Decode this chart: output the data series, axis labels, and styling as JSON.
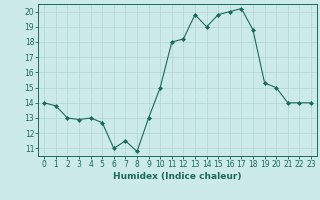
{
  "x": [
    0,
    1,
    2,
    3,
    4,
    5,
    6,
    7,
    8,
    9,
    10,
    11,
    12,
    13,
    14,
    15,
    16,
    17,
    18,
    19,
    20,
    21,
    22,
    23
  ],
  "y": [
    14,
    13.8,
    13,
    12.9,
    13,
    12.7,
    11,
    11.5,
    10.8,
    13,
    15,
    18,
    18.2,
    19.8,
    19,
    19.8,
    20,
    20.2,
    18.8,
    15.3,
    15,
    14,
    14,
    14
  ],
  "line_color": "#1a6b5a",
  "marker_color": "#1a6b5a",
  "bg_color": "#cceaea",
  "grid_color": "#b0d4d4",
  "xlabel": "Humidex (Indice chaleur)",
  "xlim": [
    -0.5,
    23.5
  ],
  "ylim": [
    10.5,
    20.5
  ],
  "yticks": [
    11,
    12,
    13,
    14,
    15,
    16,
    17,
    18,
    19,
    20
  ],
  "xticks": [
    0,
    1,
    2,
    3,
    4,
    5,
    6,
    7,
    8,
    9,
    10,
    11,
    12,
    13,
    14,
    15,
    16,
    17,
    18,
    19,
    20,
    21,
    22,
    23
  ],
  "label_fontsize": 6.5,
  "tick_fontsize": 5.5
}
